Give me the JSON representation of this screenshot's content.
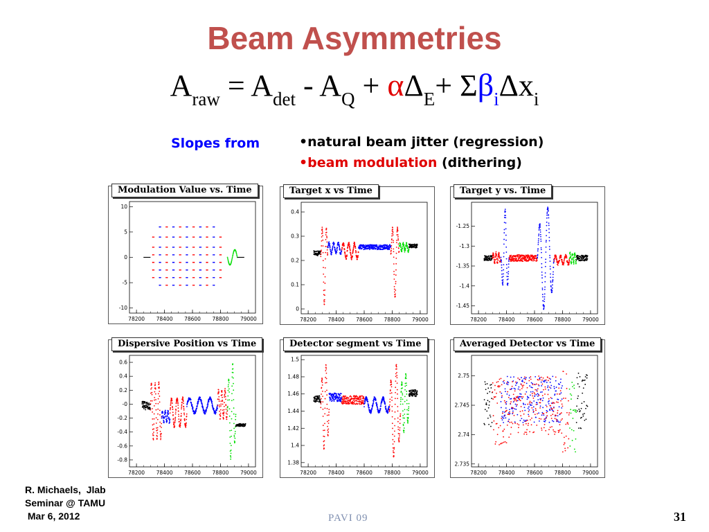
{
  "slide": {
    "title": "Beam Asymmetries",
    "formula": {
      "a": "A",
      "raw": "raw",
      "eq": " = ",
      "det": "det",
      "minus": " - ",
      "q": "Q",
      "plus1": " + ",
      "alpha": "α",
      "delta1": "Δ",
      "e": "E",
      "plus2": "+ ",
      "sigma": "Σ",
      "beta": "β",
      "i1": "i",
      "delta2": "Δ",
      "x": "x",
      "i2": "i"
    },
    "slopes_from": "Slopes from",
    "bullet1": "•natural beam jitter (regression)",
    "bullet2_colored": "•beam modulation",
    "bullet2_rest": " (dithering)",
    "footer_left": "R. Michaels,  Jlab\nSeminar @ TAMU\n Mar 6, 2012",
    "footer_center": "PAVI  09",
    "page_number": "31"
  },
  "chart_data": [
    {
      "type": "scatter",
      "title": "Modulation Value vs. Time",
      "xlim": [
        78150,
        79050
      ],
      "ylim": [
        -11,
        11
      ],
      "xticks": [
        "78200",
        "78400",
        "78600",
        "78800",
        "79000"
      ],
      "yticks": [
        "10",
        "5",
        "0",
        "-5",
        "-10"
      ],
      "ytick_values": [
        10,
        5,
        0,
        -5,
        -10
      ],
      "grid": false,
      "pattern": "modulation",
      "segments": [
        {
          "color": "#000000",
          "x0": 78250,
          "x1": 78300,
          "kind": "flat",
          "level": 0
        },
        {
          "color": "#ff0000",
          "x0": 78300,
          "x1": 78850,
          "kind": "dots"
        },
        {
          "color": "#0000ff",
          "x0": 78300,
          "x1": 78850,
          "kind": "dots"
        },
        {
          "color": "#00dd00",
          "x0": 78850,
          "x1": 78920,
          "kind": "wave",
          "amp": 1.5
        },
        {
          "color": "#000000",
          "x0": 78920,
          "x1": 78970,
          "kind": "flat",
          "level": 0
        }
      ]
    },
    {
      "type": "scatter",
      "title": "Target x vs Time",
      "xlim": [
        78150,
        79050
      ],
      "ylim": [
        -0.02,
        0.44
      ],
      "xticks": [
        "78200",
        "78400",
        "78600",
        "78800",
        "79000"
      ],
      "yticks": [
        "0.4",
        "0.3",
        "0.2",
        "0.1",
        "0"
      ],
      "ytick_values": [
        0.4,
        0.3,
        0.2,
        0.1,
        0
      ],
      "grid": false,
      "pattern": "trace",
      "segments": [
        {
          "color": "#000000",
          "x0": 78240,
          "x1": 78290,
          "kind": "noise",
          "base": 0.23,
          "amp": 0.01
        },
        {
          "color": "#ff0000",
          "x0": 78290,
          "x1": 78340,
          "kind": "spike",
          "base": 0.22,
          "amp": 0.2
        },
        {
          "color": "#0000ff",
          "x0": 78340,
          "x1": 78440,
          "kind": "wave",
          "base": 0.25,
          "amp": 0.02
        },
        {
          "color": "#ff0000",
          "x0": 78440,
          "x1": 78560,
          "kind": "wave",
          "base": 0.24,
          "amp": 0.03
        },
        {
          "color": "#0000ff",
          "x0": 78560,
          "x1": 78790,
          "kind": "noise",
          "base": 0.255,
          "amp": 0.01
        },
        {
          "color": "#ff0000",
          "x0": 78790,
          "x1": 78850,
          "kind": "spike",
          "base": 0.23,
          "amp": 0.18
        },
        {
          "color": "#00dd00",
          "x0": 78850,
          "x1": 78920,
          "kind": "wave",
          "base": 0.255,
          "amp": 0.015
        },
        {
          "color": "#000000",
          "x0": 78920,
          "x1": 78980,
          "kind": "noise",
          "base": 0.26,
          "amp": 0.008
        }
      ]
    },
    {
      "type": "scatter",
      "title": "Target y vs. Time",
      "xlim": [
        78150,
        79050
      ],
      "ylim": [
        -1.47,
        -1.19
      ],
      "xticks": [
        "78200",
        "78400",
        "78600",
        "78800",
        "79000"
      ],
      "yticks": [
        "-1.25",
        "-1.3",
        "-1.35",
        "-1.4",
        "-1.45"
      ],
      "ytick_values": [
        -1.25,
        -1.3,
        -1.35,
        -1.4,
        -1.45
      ],
      "grid": false,
      "pattern": "trace",
      "segments": [
        {
          "color": "#000000",
          "x0": 78240,
          "x1": 78300,
          "kind": "noise",
          "base": -1.33,
          "amp": 0.006
        },
        {
          "color": "#ff0000",
          "x0": 78300,
          "x1": 78360,
          "kind": "wave",
          "base": -1.33,
          "amp": 0.012
        },
        {
          "color": "#0000ff",
          "x0": 78360,
          "x1": 78420,
          "kind": "spike",
          "base": -1.33,
          "amp": -0.12
        },
        {
          "color": "#ff0000",
          "x0": 78420,
          "x1": 78620,
          "kind": "noise",
          "base": -1.33,
          "amp": 0.008
        },
        {
          "color": "#0000ff",
          "x0": 78620,
          "x1": 78740,
          "kind": "spike2",
          "base": -1.33,
          "amp": 0.13
        },
        {
          "color": "#ff0000",
          "x0": 78740,
          "x1": 78850,
          "kind": "wave",
          "base": -1.335,
          "amp": 0.01
        },
        {
          "color": "#00dd00",
          "x0": 78850,
          "x1": 78900,
          "kind": "wave",
          "base": -1.33,
          "amp": 0.012
        },
        {
          "color": "#000000",
          "x0": 78900,
          "x1": 78980,
          "kind": "noise",
          "base": -1.33,
          "amp": 0.007
        }
      ]
    },
    {
      "type": "scatter",
      "title": "Dispersive Position vs Time",
      "xlim": [
        78150,
        79050
      ],
      "ylim": [
        -0.9,
        0.7
      ],
      "xticks": [
        "78200",
        "78400",
        "78600",
        "78800",
        "79000"
      ],
      "yticks": [
        "0.6",
        "0.4",
        "0.2",
        "-0",
        "-0.2",
        "-0.4",
        "-0.6",
        "-0.8"
      ],
      "ytick_values": [
        0.6,
        0.4,
        0.2,
        0,
        -0.2,
        -0.4,
        -0.6,
        -0.8
      ],
      "grid": false,
      "pattern": "trace",
      "segments": [
        {
          "color": "#000000",
          "x0": 78240,
          "x1": 78300,
          "kind": "noise",
          "base": -0.02,
          "amp": 0.06
        },
        {
          "color": "#ff0000",
          "x0": 78300,
          "x1": 78380,
          "kind": "wave",
          "base": -0.1,
          "amp": 0.4
        },
        {
          "color": "#0000ff",
          "x0": 78380,
          "x1": 78440,
          "kind": "wave",
          "base": -0.18,
          "amp": 0.08
        },
        {
          "color": "#ff0000",
          "x0": 78440,
          "x1": 78560,
          "kind": "wave",
          "base": -0.12,
          "amp": 0.2
        },
        {
          "color": "#0000ff",
          "x0": 78560,
          "x1": 78780,
          "kind": "wave",
          "base": -0.02,
          "amp": 0.1
        },
        {
          "color": "#ff0000",
          "x0": 78780,
          "x1": 78850,
          "kind": "wave",
          "base": -0.0,
          "amp": 0.2
        },
        {
          "color": "#00dd00",
          "x0": 78850,
          "x1": 78910,
          "kind": "spike2",
          "base": -0.1,
          "amp": 0.7
        },
        {
          "color": "#000000",
          "x0": 78910,
          "x1": 78980,
          "kind": "noise",
          "base": -0.3,
          "amp": 0.02
        }
      ]
    },
    {
      "type": "scatter",
      "title": "Detector segment vs Time",
      "xlim": [
        78150,
        79050
      ],
      "ylim": [
        1.375,
        1.505
      ],
      "xticks": [
        "78200",
        "78400",
        "78600",
        "78800",
        "79000"
      ],
      "yticks": [
        "1.5",
        "1.48",
        "1.46",
        "1.44",
        "1.42",
        "1.4",
        "1.38"
      ],
      "ytick_values": [
        1.5,
        1.48,
        1.46,
        1.44,
        1.42,
        1.4,
        1.38
      ],
      "grid": false,
      "pattern": "trace",
      "segments": [
        {
          "color": "#000000",
          "x0": 78240,
          "x1": 78290,
          "kind": "noise",
          "base": 1.454,
          "amp": 0.004
        },
        {
          "color": "#ff0000",
          "x0": 78290,
          "x1": 78350,
          "kind": "spike2",
          "base": 1.445,
          "amp": 0.05
        },
        {
          "color": "#0000ff",
          "x0": 78350,
          "x1": 78440,
          "kind": "noise",
          "base": 1.456,
          "amp": 0.005
        },
        {
          "color": "#ff0000",
          "x0": 78440,
          "x1": 78600,
          "kind": "noise",
          "base": 1.453,
          "amp": 0.005
        },
        {
          "color": "#0000ff",
          "x0": 78600,
          "x1": 78780,
          "kind": "wave",
          "base": 1.447,
          "amp": 0.008
        },
        {
          "color": "#ff0000",
          "x0": 78780,
          "x1": 78860,
          "kind": "spike2",
          "base": 1.44,
          "amp": 0.055
        },
        {
          "color": "#00dd00",
          "x0": 78860,
          "x1": 78920,
          "kind": "spike2",
          "base": 1.45,
          "amp": 0.035
        },
        {
          "color": "#000000",
          "x0": 78920,
          "x1": 78980,
          "kind": "noise",
          "base": 1.461,
          "amp": 0.004
        }
      ]
    },
    {
      "type": "scatter",
      "title": "Averaged Detector vs Time",
      "xlim": [
        78150,
        79050
      ],
      "ylim": [
        2.7345,
        2.7535
      ],
      "xticks": [
        "78200",
        "78400",
        "78600",
        "78800",
        "79000"
      ],
      "yticks": [
        "2.75",
        "2.745",
        "2.74",
        "2.735"
      ],
      "ytick_values": [
        2.75,
        2.745,
        2.74,
        2.735
      ],
      "grid": false,
      "pattern": "scatter",
      "segments": [
        {
          "color": "#000000",
          "x0": 78240,
          "x1": 78300,
          "kind": "cloud",
          "base": 2.745,
          "amp": 0.004
        },
        {
          "color": "#ff0000",
          "x0": 78300,
          "x1": 78420,
          "kind": "cloud",
          "base": 2.744,
          "amp": 0.006
        },
        {
          "color": "#0000ff",
          "x0": 78360,
          "x1": 78800,
          "kind": "cloud",
          "base": 2.746,
          "amp": 0.004
        },
        {
          "color": "#ff0000",
          "x0": 78420,
          "x1": 78800,
          "kind": "cloud",
          "base": 2.745,
          "amp": 0.005
        },
        {
          "color": "#ff0000",
          "x0": 78800,
          "x1": 78850,
          "kind": "cloud",
          "base": 2.744,
          "amp": 0.007
        },
        {
          "color": "#00dd00",
          "x0": 78850,
          "x1": 78900,
          "kind": "cloud",
          "base": 2.743,
          "amp": 0.006
        },
        {
          "color": "#000000",
          "x0": 78900,
          "x1": 78980,
          "kind": "cloud",
          "base": 2.746,
          "amp": 0.005
        }
      ]
    }
  ]
}
